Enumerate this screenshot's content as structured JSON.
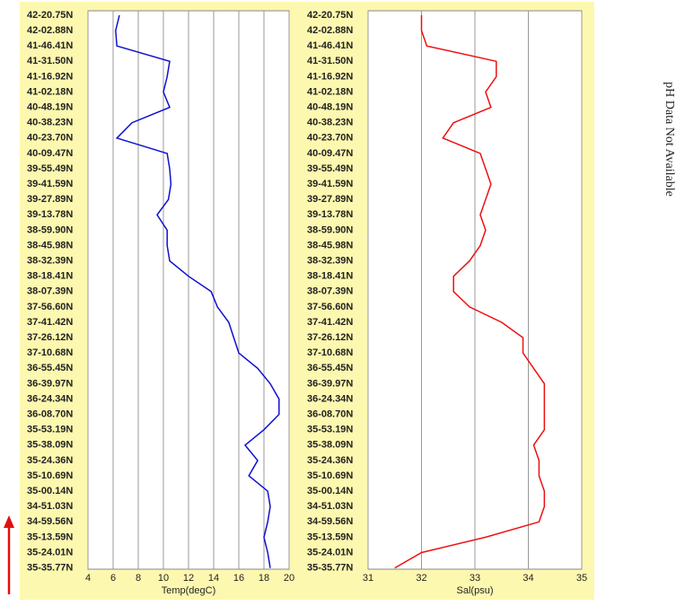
{
  "chart_data": [
    {
      "type": "line",
      "x_label": "Temp(degC)",
      "color": "#1010d0",
      "categories": [
        "42-20.75N",
        "42-02.88N",
        "41-46.41N",
        "41-31.50N",
        "41-16.92N",
        "41-02.18N",
        "40-48.19N",
        "40-38.23N",
        "40-23.70N",
        "40-09.47N",
        "39-55.49N",
        "39-41.59N",
        "39-27.89N",
        "39-13.78N",
        "38-59.90N",
        "38-45.98N",
        "38-32.39N",
        "38-18.41N",
        "38-07.39N",
        "37-56.60N",
        "37-41.42N",
        "37-26.12N",
        "37-10.68N",
        "36-55.45N",
        "36-39.97N",
        "36-24.34N",
        "36-08.70N",
        "35-53.19N",
        "35-38.09N",
        "35-24.36N",
        "35-10.69N",
        "35-00.14N",
        "34-51.03N",
        "34-59.56N",
        "35-13.59N",
        "35-24.01N",
        "35-35.77N"
      ],
      "values": [
        6.5,
        6.2,
        6.3,
        10.5,
        10.3,
        10.0,
        10.5,
        7.5,
        6.3,
        10.3,
        10.5,
        10.6,
        10.4,
        9.5,
        10.3,
        10.3,
        10.5,
        12,
        13.8,
        14.3,
        15.2,
        15.6,
        16,
        17.5,
        18.5,
        19.2,
        19.2,
        18,
        16.5,
        17.5,
        16.8,
        18.3,
        18.5,
        18.3,
        18,
        18.3,
        18.5
      ],
      "xlim": [
        4,
        20
      ],
      "xticks": [
        4,
        6,
        8,
        10,
        12,
        14,
        16,
        18,
        20
      ],
      "grid": true
    },
    {
      "type": "line",
      "x_label": "Sal(psu)",
      "color": "#ee1010",
      "categories": [
        "42-20.75N",
        "42-02.88N",
        "41-46.41N",
        "41-31.50N",
        "41-16.92N",
        "41-02.18N",
        "40-48.19N",
        "40-38.23N",
        "40-23.70N",
        "40-09.47N",
        "39-55.49N",
        "39-41.59N",
        "39-27.89N",
        "39-13.78N",
        "38-59.90N",
        "38-45.98N",
        "38-32.39N",
        "38-18.41N",
        "38-07.39N",
        "37-56.60N",
        "37-41.42N",
        "37-26.12N",
        "37-10.68N",
        "36-55.45N",
        "36-39.97N",
        "36-24.34N",
        "36-08.70N",
        "35-53.19N",
        "35-38.09N",
        "35-24.36N",
        "35-10.69N",
        "35-00.14N",
        "34-51.03N",
        "34-59.56N",
        "35-13.59N",
        "35-24.01N",
        "35-35.77N"
      ],
      "values": [
        32,
        32,
        32.1,
        33.4,
        33.4,
        33.2,
        33.3,
        32.6,
        32.4,
        33.1,
        33.2,
        33.3,
        33.2,
        33.1,
        33.2,
        33.1,
        32.9,
        32.6,
        32.6,
        32.9,
        33.5,
        33.9,
        33.9,
        34.1,
        34.3,
        34.3,
        34.3,
        34.3,
        34.1,
        34.2,
        34.2,
        34.3,
        34.3,
        34.2,
        33.2,
        32,
        31.5
      ],
      "xlim": [
        31,
        35
      ],
      "xticks": [
        31,
        32,
        33,
        34,
        35
      ],
      "grid": true
    }
  ],
  "annotation": "pH Data Not Available"
}
